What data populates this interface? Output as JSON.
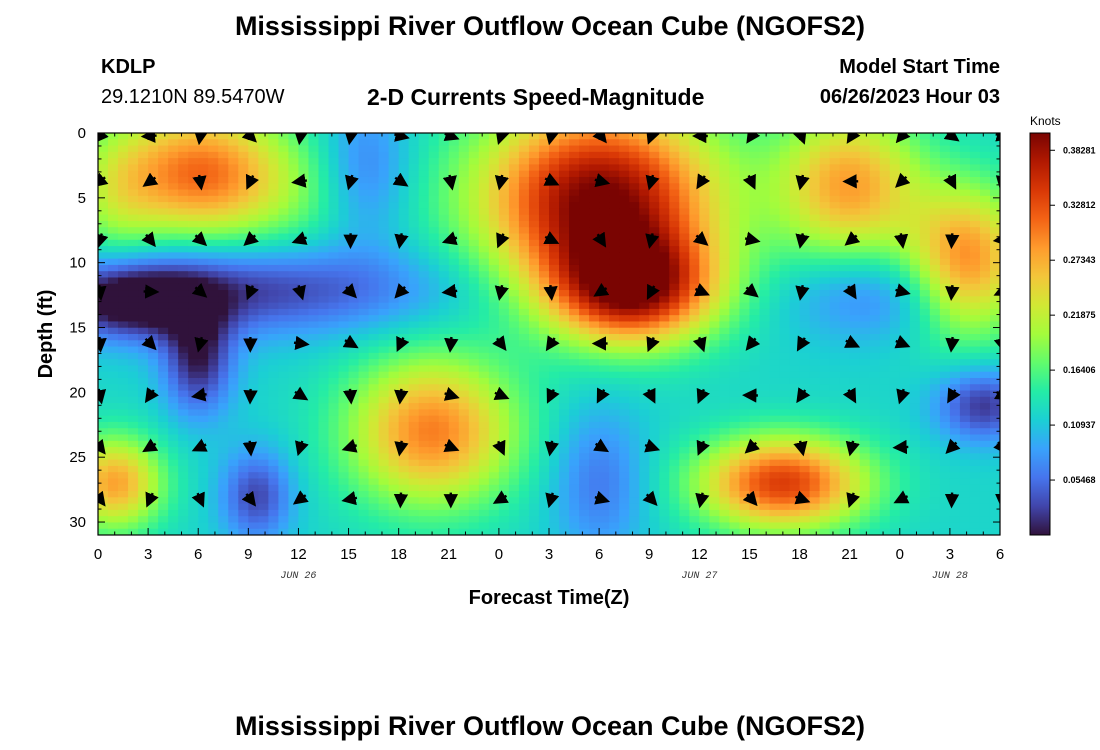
{
  "header": {
    "title": "Mississippi River Outflow Ocean Cube (NGOFS2)",
    "station_id": "KDLP",
    "station_coords": "29.1210N  89.5470W",
    "subtitle": "2-D Currents Speed-Magnitude",
    "model_start_label": "Model Start Time",
    "model_start_value": "06/26/2023 Hour 03"
  },
  "footer": {
    "title": "Mississippi River Outflow Ocean Cube (NGOFS2)"
  },
  "chart_data": {
    "type": "heatmap",
    "xlabel": "Forecast Time(Z)",
    "ylabel": "Depth (ft)",
    "x_tick_labels": [
      "0",
      "3",
      "6",
      "9",
      "12",
      "15",
      "18",
      "21",
      "0",
      "3",
      "6",
      "9",
      "12",
      "15",
      "18",
      "21",
      "0",
      "3",
      "6"
    ],
    "x_range_hours": [
      0,
      54
    ],
    "date_labels": [
      {
        "text": "JUN 26",
        "hour": 12
      },
      {
        "text": "JUN 27",
        "hour": 36
      },
      {
        "text": "JUN 28",
        "hour": 51
      }
    ],
    "y_ticks": [
      0,
      5,
      10,
      15,
      20,
      25,
      30
    ],
    "y_range_ft": [
      0,
      31
    ],
    "y_inverted": true,
    "colorbar": {
      "unit": "Knots",
      "range": [
        0,
        0.4
      ],
      "tick_values": [
        0.05468,
        0.10937,
        0.16406,
        0.21875,
        0.27343,
        0.32812,
        0.38281
      ],
      "tick_labels": [
        "0.05468",
        "0.10937",
        "0.16406",
        "0.21875",
        "0.27343",
        "0.32812",
        "0.38281"
      ],
      "colors": [
        "#30123b",
        "#4145ab",
        "#4675ed",
        "#39a2fc",
        "#1bcfd4",
        "#24eca6",
        "#61fc6c",
        "#a4fc3b",
        "#d1e834",
        "#f3c63a",
        "#fe9b2d",
        "#f36315",
        "#d93806",
        "#b11901",
        "#7a0402"
      ]
    },
    "speed_features_knots": [
      {
        "hour": 6,
        "depth_ft": 3,
        "speed": 0.3,
        "spread_hours": 3.5,
        "spread_ft": 3.5
      },
      {
        "hour": 1,
        "depth_ft": 5,
        "speed": 0.18,
        "spread_hours": 2,
        "spread_ft": 4
      },
      {
        "hour": 12,
        "depth_ft": 5,
        "speed": 0.16,
        "spread_hours": 4,
        "spread_ft": 4
      },
      {
        "hour": 9,
        "depth_ft": 12,
        "speed": 0.02,
        "spread_hours": 8,
        "spread_ft": 2.5
      },
      {
        "hour": 2,
        "depth_ft": 13,
        "speed": 0.01,
        "spread_hours": 3,
        "spread_ft": 2
      },
      {
        "hour": 6,
        "depth_ft": 17.5,
        "speed": 0.01,
        "spread_hours": 1.5,
        "spread_ft": 3
      },
      {
        "hour": 16,
        "depth_ft": 3,
        "speed": 0.05,
        "spread_hours": 2,
        "spread_ft": 4
      },
      {
        "hour": 30,
        "depth_ft": 5,
        "speed": 0.4,
        "spread_hours": 5,
        "spread_ft": 5
      },
      {
        "hour": 32,
        "depth_ft": 12,
        "speed": 0.36,
        "spread_hours": 3.5,
        "spread_ft": 3
      },
      {
        "hour": 45,
        "depth_ft": 4,
        "speed": 0.28,
        "spread_hours": 3,
        "spread_ft": 4
      },
      {
        "hour": 52,
        "depth_ft": 10,
        "speed": 0.3,
        "spread_hours": 2.5,
        "spread_ft": 4
      },
      {
        "hour": 47,
        "depth_ft": 12.5,
        "speed": 0.06,
        "spread_hours": 4,
        "spread_ft": 2.5
      },
      {
        "hour": 20,
        "depth_ft": 23,
        "speed": 0.3,
        "spread_hours": 3.5,
        "spread_ft": 4
      },
      {
        "hour": 41,
        "depth_ft": 27,
        "speed": 0.34,
        "spread_hours": 3.5,
        "spread_ft": 2.5
      },
      {
        "hour": 1,
        "depth_ft": 27,
        "speed": 0.28,
        "spread_hours": 2,
        "spread_ft": 2.5
      },
      {
        "hour": 9.5,
        "depth_ft": 28,
        "speed": 0.03,
        "spread_hours": 1.5,
        "spread_ft": 2.5
      },
      {
        "hour": 30,
        "depth_ft": 27,
        "speed": 0.06,
        "spread_hours": 2,
        "spread_ft": 4
      },
      {
        "hour": 53,
        "depth_ft": 21,
        "speed": 0.02,
        "spread_hours": 2,
        "spread_ft": 2
      }
    ],
    "arrow_grid": {
      "hours": [
        0,
        3,
        6,
        9,
        12,
        15,
        18,
        21,
        24,
        27,
        30,
        33,
        36,
        39,
        42,
        45,
        48,
        51,
        54
      ],
      "depths_ft": [
        0,
        3.5,
        8,
        12,
        16,
        20,
        24,
        28
      ]
    }
  }
}
